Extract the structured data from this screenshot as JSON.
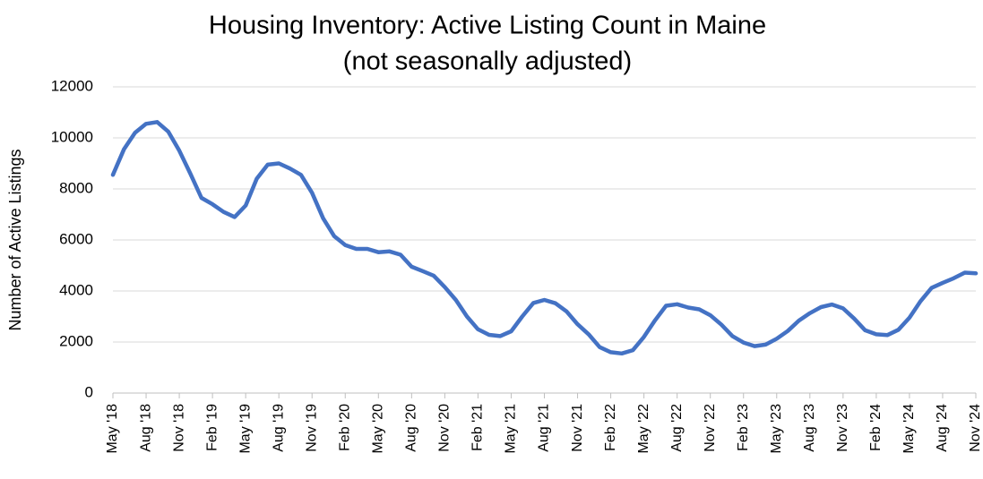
{
  "chart_data": {
    "type": "line",
    "title": "Housing Inventory: Active Listing Count in Maine",
    "subtitle": "(not seasonally adjusted)",
    "y_label": "Number of Active Listings",
    "categories": [
      "May '18",
      null,
      null,
      "Aug '18",
      null,
      null,
      "Nov '18",
      null,
      null,
      "Feb '19",
      null,
      null,
      "May '19",
      null,
      null,
      "Aug '19",
      null,
      null,
      "Nov '19",
      null,
      null,
      "Feb '20",
      null,
      null,
      "May '20",
      null,
      null,
      "Aug '20",
      null,
      null,
      "Nov '20",
      null,
      null,
      "Feb '21",
      null,
      null,
      "May '21",
      null,
      null,
      "Aug '21",
      null,
      null,
      "Nov '21",
      null,
      null,
      "Feb '22",
      null,
      null,
      "May '22",
      null,
      null,
      "Aug '22",
      null,
      null,
      "Nov '22",
      null,
      null,
      "Feb '23",
      null,
      null,
      "May '23",
      null,
      null,
      "Aug '23",
      null,
      null,
      "Nov '23",
      null,
      null,
      "Feb '24",
      null,
      null,
      "May '24",
      null,
      null,
      "Aug '24",
      null,
      null,
      "Nov '24"
    ],
    "values": [
      8550,
      9550,
      10200,
      10550,
      10620,
      10250,
      9500,
      8600,
      7650,
      7400,
      7100,
      6900,
      7350,
      8400,
      8950,
      9000,
      8800,
      8550,
      7850,
      6850,
      6150,
      5800,
      5650,
      5650,
      5520,
      5550,
      5420,
      4950,
      4780,
      4600,
      4150,
      3650,
      3000,
      2500,
      2280,
      2230,
      2420,
      3000,
      3530,
      3650,
      3520,
      3200,
      2700,
      2300,
      1800,
      1600,
      1550,
      1680,
      2200,
      2850,
      3420,
      3480,
      3350,
      3280,
      3050,
      2680,
      2230,
      1980,
      1840,
      1900,
      2130,
      2430,
      2840,
      3130,
      3370,
      3470,
      3320,
      2920,
      2460,
      2300,
      2270,
      2480,
      2950,
      3600,
      4120,
      4320,
      4500,
      4720,
      4690
    ],
    "color": "#4472c4",
    "ylim": [
      0,
      12000
    ],
    "yticks": [
      0,
      2000,
      4000,
      6000,
      8000,
      10000,
      12000
    ],
    "grid": true
  }
}
